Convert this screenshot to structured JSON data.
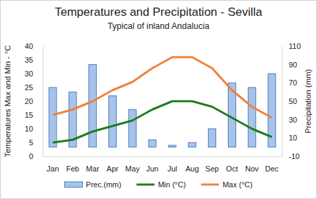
{
  "chart_data": {
    "type": "bar",
    "title": "Temperatures and Precipitation - Sevilla",
    "subtitle": "Typical of inland Andalucia",
    "y_label": "Temperatures Max and Min - °C",
    "y2_label": "Precipitation (mm)",
    "categories": [
      "Jan",
      "Feb",
      "Mar",
      "Apr",
      "May",
      "Jun",
      "Jul",
      "Aug",
      "Sep",
      "Oct",
      "Nov",
      "Dec"
    ],
    "series": [
      {
        "name": "Prec.(mm)",
        "type": "bar",
        "axis": "y2",
        "color": "#a7c3ea",
        "values": [
          65,
          60,
          90,
          56,
          41,
          8,
          2,
          5,
          20,
          70,
          65,
          80
        ]
      },
      {
        "name": "Min (°C)",
        "type": "line",
        "color": "#1e7b1e",
        "values": [
          5,
          6,
          9,
          11,
          13,
          17,
          20,
          20,
          18,
          14,
          10,
          7
        ]
      },
      {
        "name": "Max (°C)",
        "type": "line",
        "color": "#f0803c",
        "values": [
          15,
          17,
          20,
          24,
          27,
          32,
          36,
          36,
          32,
          24,
          18,
          14
        ]
      }
    ],
    "ylim": [
      0,
      40
    ],
    "yticks": [
      0,
      5,
      10,
      15,
      20,
      25,
      30,
      35,
      40
    ],
    "y2lim": [
      -10,
      110
    ],
    "y2ticks": [
      -10,
      10,
      30,
      50,
      70,
      90,
      110
    ],
    "grid": false,
    "legend": "bottom"
  }
}
